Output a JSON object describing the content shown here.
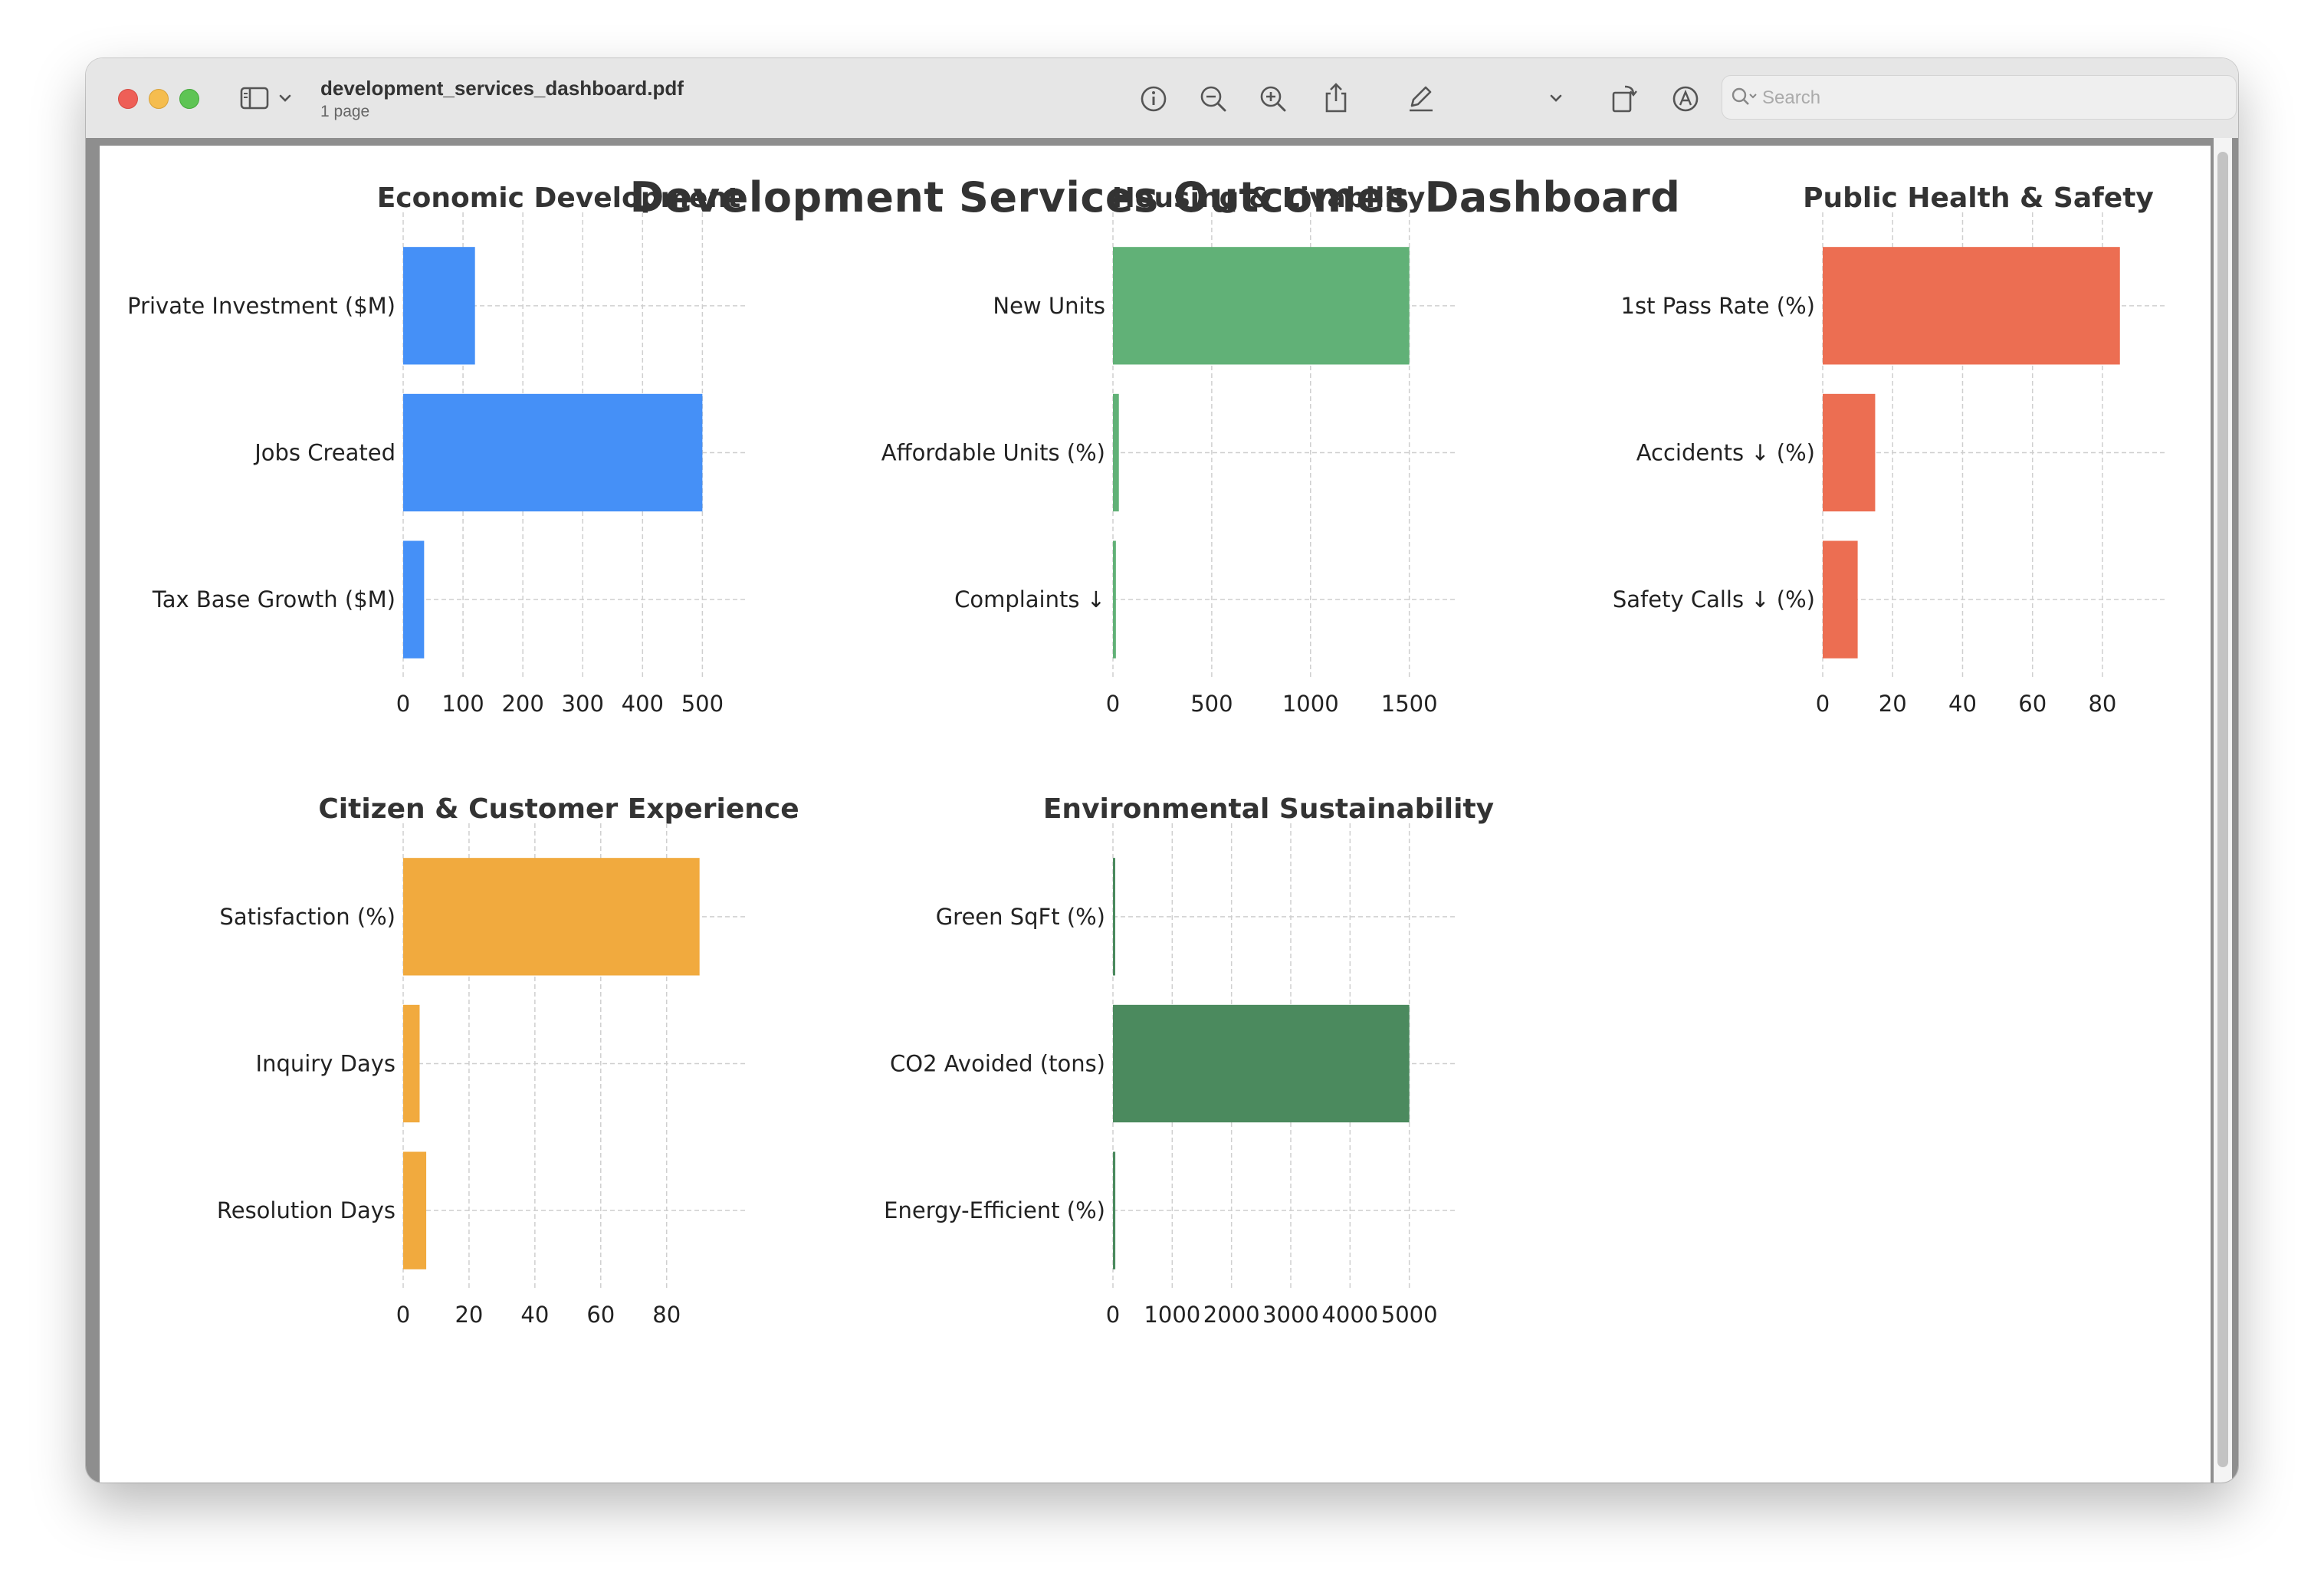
{
  "window": {
    "filename": "development_services_dashboard.pdf",
    "page_count": "1 page"
  },
  "toolbar": {
    "icons": [
      "sidebar-icon",
      "chevron-down-icon",
      "info-icon",
      "zoom-out-icon",
      "zoom-in-icon",
      "share-icon",
      "markup-pen-icon",
      "chevron-down-icon",
      "rotate-icon",
      "annotate-icon",
      "signature-icon",
      "search-icon"
    ],
    "search_placeholder": "Search"
  },
  "dashboard": {
    "title": "Development Services Outcomes Dashboard"
  },
  "chart_data": [
    {
      "type": "bar",
      "orientation": "horizontal",
      "title": "Economic Development",
      "categories": [
        "Private Investment ($M)",
        "Jobs Created",
        "Tax Base Growth ($M)"
      ],
      "values": [
        120,
        500,
        35
      ],
      "xlim": [
        0,
        520
      ],
      "xticks": [
        0,
        100,
        200,
        300,
        400,
        500
      ],
      "color": "#4590f7",
      "grid": true
    },
    {
      "type": "bar",
      "orientation": "horizontal",
      "title": "Housing & Livability",
      "categories": [
        "New Units",
        "Affordable Units (%)",
        "Complaints ↓"
      ],
      "values": [
        1500,
        30,
        15
      ],
      "xlim": [
        0,
        1575
      ],
      "xticks": [
        0,
        500,
        1000,
        1500
      ],
      "color": "#61b177",
      "grid": true
    },
    {
      "type": "bar",
      "orientation": "horizontal",
      "title": "Public Health & Safety",
      "categories": [
        "1st Pass Rate (%)",
        "Accidents ↓ (%)",
        "Safety Calls ↓ (%)"
      ],
      "values": [
        85,
        15,
        10
      ],
      "xlim": [
        0,
        89
      ],
      "xticks": [
        0,
        20,
        40,
        60,
        80
      ],
      "color": "#ec6e52",
      "grid": true
    },
    {
      "type": "bar",
      "orientation": "horizontal",
      "title": "Citizen & Customer Experience",
      "categories": [
        "Satisfaction (%)",
        "Inquiry Days",
        "Resolution Days"
      ],
      "values": [
        90,
        5,
        7
      ],
      "xlim": [
        0,
        94.5
      ],
      "xticks": [
        0,
        20,
        40,
        60,
        80
      ],
      "color": "#f1aa3e",
      "grid": true
    },
    {
      "type": "bar",
      "orientation": "horizontal",
      "title": "Environmental Sustainability",
      "categories": [
        "Green SqFt (%)",
        "CO2 Avoided (tons)",
        "Energy-Efficient (%)"
      ],
      "values": [
        25,
        5000,
        40
      ],
      "xlim": [
        0,
        5250
      ],
      "xticks": [
        0,
        1000,
        2000,
        3000,
        4000,
        5000
      ],
      "color": "#4b8a5e",
      "grid": true
    }
  ]
}
